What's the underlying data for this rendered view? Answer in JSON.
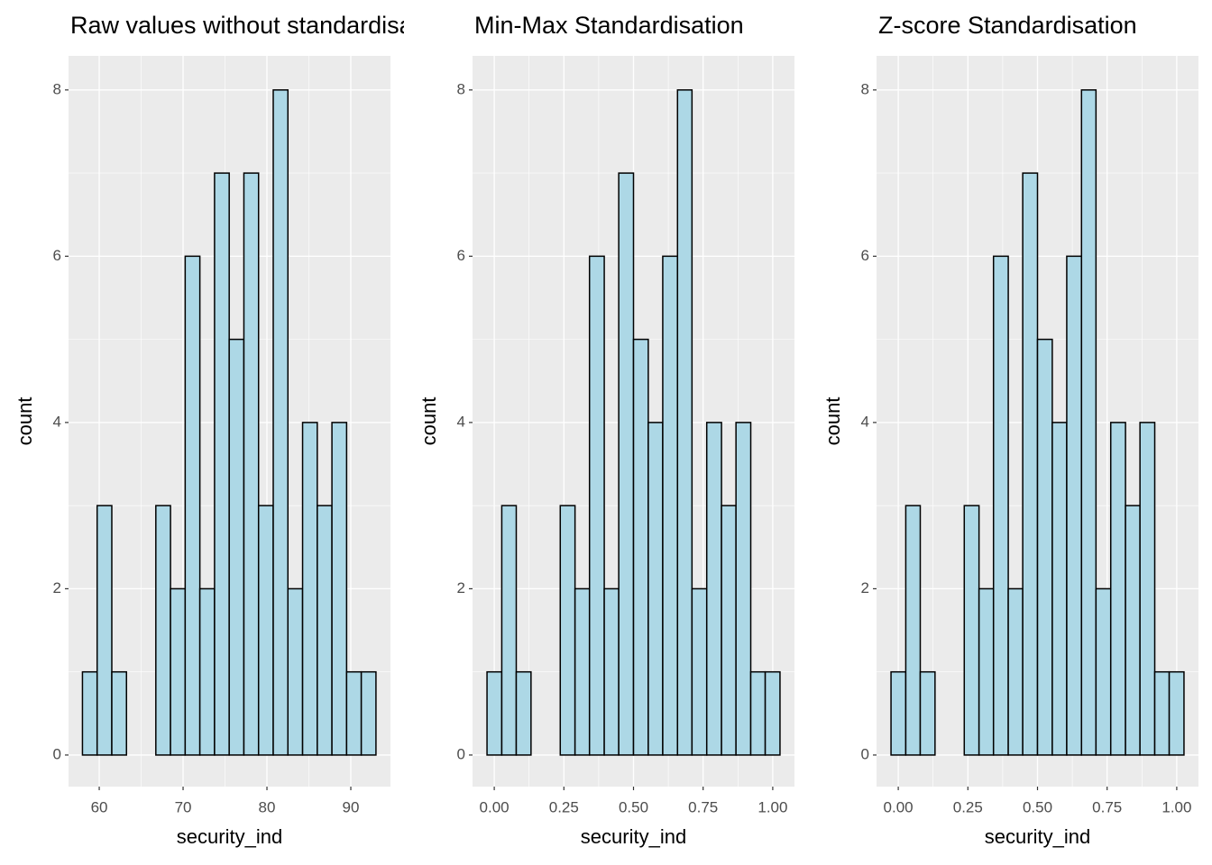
{
  "chart_data": [
    {
      "type": "histogram",
      "title": "Raw values without standardisation",
      "xlabel": "security_ind",
      "ylabel": "count",
      "bins": [
        58,
        59.75,
        61.5,
        63.25,
        65,
        66.75,
        68.5,
        70.25,
        72,
        73.75,
        75.5,
        77.25,
        79,
        80.75,
        82.5,
        84.25,
        86,
        87.75,
        89.5,
        91.25,
        93
      ],
      "values": [
        1,
        3,
        1,
        0,
        0,
        3,
        2,
        6,
        2,
        7,
        5,
        7,
        3,
        8,
        2,
        4,
        3,
        4,
        1,
        1
      ],
      "color": "#add8e6",
      "edgecolor": "#000000",
      "xlim": [
        56.34,
        94.73
      ],
      "xticks": [
        60,
        70,
        80,
        90
      ],
      "ylim": [
        -0.38,
        8.41
      ],
      "yticks": [
        0,
        2,
        4,
        6,
        8
      ],
      "grid": true
    },
    {
      "type": "histogram",
      "title": "Min-Max Standardisation",
      "xlabel": "security_ind",
      "ylabel": "count",
      "bins": [
        -0.026,
        0.027,
        0.079,
        0.132,
        0.184,
        0.237,
        0.29,
        0.342,
        0.395,
        0.447,
        0.5,
        0.553,
        0.605,
        0.658,
        0.71,
        0.763,
        0.816,
        0.868,
        0.921,
        0.973,
        1.026
      ],
      "values": [
        1,
        3,
        1,
        0,
        0,
        3,
        2,
        6,
        2,
        7,
        5,
        4,
        6,
        8,
        2,
        4,
        3,
        4,
        1,
        1
      ],
      "color": "#add8e6",
      "edgecolor": "#000000",
      "xlim": [
        -0.078,
        1.078
      ],
      "xticks": [
        {
          "value": 0,
          "label": "0.00"
        },
        0.25,
        {
          "value": 0.5,
          "label": "0.50"
        },
        0.75,
        {
          "value": 1,
          "label": "1.00"
        }
      ],
      "ylim": [
        -0.38,
        8.41
      ],
      "yticks": [
        0,
        2,
        4,
        6,
        8
      ],
      "grid": true
    },
    {
      "type": "histogram",
      "title": "Z-score Standardisation",
      "xlabel": "security_ind",
      "ylabel": "count",
      "bins": [
        -0.026,
        0.027,
        0.079,
        0.132,
        0.184,
        0.237,
        0.29,
        0.342,
        0.395,
        0.447,
        0.5,
        0.553,
        0.605,
        0.658,
        0.71,
        0.763,
        0.816,
        0.868,
        0.921,
        0.973,
        1.026
      ],
      "values": [
        1,
        3,
        1,
        0,
        0,
        3,
        2,
        6,
        2,
        7,
        5,
        4,
        6,
        8,
        2,
        4,
        3,
        4,
        1,
        1
      ],
      "color": "#add8e6",
      "edgecolor": "#000000",
      "xlim": [
        -0.078,
        1.078
      ],
      "xticks": [
        {
          "value": 0,
          "label": "0.00"
        },
        0.25,
        {
          "value": 0.5,
          "label": "0.50"
        },
        0.75,
        {
          "value": 1,
          "label": "1.00"
        }
      ],
      "ylim": [
        -0.38,
        8.41
      ],
      "yticks": [
        0,
        2,
        4,
        6,
        8
      ],
      "grid": true
    }
  ]
}
